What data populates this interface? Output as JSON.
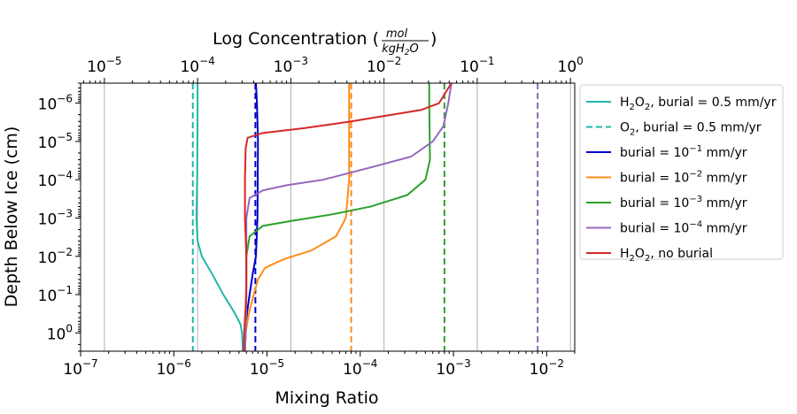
{
  "chart_data": {
    "type": "line",
    "title": "",
    "xlabel": "Mixing Ratio",
    "ylabel": "Depth Below Ice (cm)",
    "top_xlabel": {
      "main": "Log Concentration (",
      "num": "mol",
      "den": "kgH",
      "den_sub": "2",
      "den_tail": "O",
      "close": ")"
    },
    "xscale": "log",
    "yscale": "log",
    "xlim": [
      1e-07,
      0.02
    ],
    "ylim": [
      3.0,
      3e-07
    ],
    "y_inverted": true,
    "grid": "vertical",
    "legend_position": "right-outside",
    "x_ticks": [
      {
        "value": 1e-07,
        "base": "10",
        "exp": "−7"
      },
      {
        "value": 1e-06,
        "base": "10",
        "exp": "−6"
      },
      {
        "value": 1e-05,
        "base": "10",
        "exp": "−5"
      },
      {
        "value": 0.0001,
        "base": "10",
        "exp": "−4"
      },
      {
        "value": 0.001,
        "base": "10",
        "exp": "−3"
      },
      {
        "value": 0.01,
        "base": "10",
        "exp": "−2"
      }
    ],
    "top_x_ticks": [
      {
        "value": 1.8e-07,
        "base": "10",
        "exp": "−5"
      },
      {
        "value": 1.8e-06,
        "base": "10",
        "exp": "−4"
      },
      {
        "value": 1.8e-05,
        "base": "10",
        "exp": "−3"
      },
      {
        "value": 0.00018,
        "base": "10",
        "exp": "−2"
      },
      {
        "value": 0.0018,
        "base": "10",
        "exp": "−1"
      },
      {
        "value": 0.018,
        "base": "10",
        "exp": "0"
      }
    ],
    "y_ticks": [
      {
        "value": 1e-06,
        "base": "10",
        "exp": "−6"
      },
      {
        "value": 1e-05,
        "base": "10",
        "exp": "−5"
      },
      {
        "value": 0.0001,
        "base": "10",
        "exp": "−4"
      },
      {
        "value": 0.001,
        "base": "10",
        "exp": "−3"
      },
      {
        "value": 0.01,
        "base": "10",
        "exp": "−2"
      },
      {
        "value": 0.1,
        "base": "10",
        "exp": "−1"
      },
      {
        "value": 1,
        "base": "10",
        "exp": "0"
      }
    ],
    "series": [
      {
        "name": "H2O2, burial = 0.5 mm/yr",
        "legend": {
          "pre": "H",
          "sub1": "2",
          "mid": "O",
          "sub2": "2",
          "post": ", burial = 0.5 mm/yr"
        },
        "color": "#1fb6a8",
        "dash": "solid",
        "points": [
          [
            1.8e-06,
            3e-07
          ],
          [
            1.8e-06,
            1e-06
          ],
          [
            1.78e-06,
            0.0001
          ],
          [
            1.75e-06,
            0.001
          ],
          [
            1.8e-06,
            0.004
          ],
          [
            2e-06,
            0.01
          ],
          [
            2.6e-06,
            0.03
          ],
          [
            3.4e-06,
            0.1
          ],
          [
            4.5e-06,
            0.3
          ],
          [
            5.2e-06,
            0.6
          ],
          [
            5.4e-06,
            1.0
          ],
          [
            5.5e-06,
            3.0
          ]
        ]
      },
      {
        "name": "O2, burial = 0.5 mm/yr",
        "legend": {
          "pre": "O",
          "sub1": "2",
          "mid": "",
          "sub2": "",
          "post": ", burial = 0.5 mm/yr"
        },
        "color": "#1fb6a8",
        "dash": "dashed",
        "points": [
          [
            1.6e-06,
            3e-07
          ],
          [
            1.6e-06,
            3.0
          ]
        ]
      },
      {
        "name": "burial = 10^-1 mm/yr",
        "legend": {
          "pre": "burial = 10",
          "sup": "−1",
          "post": " mm/yr"
        },
        "color": "#0000c8",
        "dash": "solid",
        "points": [
          [
            7.6e-06,
            3e-07
          ],
          [
            7.8e-06,
            1e-06
          ],
          [
            8e-06,
            1e-05
          ],
          [
            7.9e-06,
            0.001
          ],
          [
            7.6e-06,
            0.01
          ],
          [
            7e-06,
            0.03
          ],
          [
            6.5e-06,
            0.1
          ],
          [
            6.1e-06,
            0.3
          ],
          [
            5.9e-06,
            1.0
          ],
          [
            5.8e-06,
            3.0
          ]
        ]
      },
      {
        "name": "burial = 10^-1 mm/yr (O2)",
        "legend_hidden": true,
        "color": "#0000c8",
        "dash": "dashed",
        "points": [
          [
            7.5e-06,
            3e-07
          ],
          [
            7.5e-06,
            3.0
          ]
        ]
      },
      {
        "name": "burial = 10^-2 mm/yr",
        "legend": {
          "pre": "burial = 10",
          "sup": "−2",
          "post": " mm/yr"
        },
        "color": "#ff8c1a",
        "dash": "solid",
        "points": [
          [
            7.6e-05,
            3e-07
          ],
          [
            7.6e-05,
            1e-06
          ],
          [
            7.6e-05,
            0.0001
          ],
          [
            7e-05,
            0.001
          ],
          [
            5.5e-05,
            0.003
          ],
          [
            3e-05,
            0.007
          ],
          [
            1.5e-05,
            0.012
          ],
          [
            9.5e-06,
            0.02
          ],
          [
            8e-06,
            0.04
          ],
          [
            7.2e-06,
            0.1
          ],
          [
            6.4e-06,
            0.3
          ],
          [
            5.9e-06,
            1.0
          ],
          [
            5.8e-06,
            3.0
          ]
        ]
      },
      {
        "name": "burial = 10^-2 mm/yr (O2)",
        "legend_hidden": true,
        "color": "#ff8c1a",
        "dash": "dashed",
        "points": [
          [
            8e-05,
            3e-07
          ],
          [
            8e-05,
            3.0
          ]
        ]
      },
      {
        "name": "burial = 10^-3 mm/yr",
        "legend": {
          "pre": "burial = 10",
          "sup": "−3",
          "post": " mm/yr"
        },
        "color": "#2ca02c",
        "dash": "solid",
        "points": [
          [
            0.00055,
            3e-07
          ],
          [
            0.00055,
            1e-06
          ],
          [
            0.00056,
            3e-05
          ],
          [
            0.0005,
            0.0001
          ],
          [
            0.00032,
            0.00025
          ],
          [
            0.00013,
            0.0005
          ],
          [
            5e-05,
            0.0008
          ],
          [
            1.8e-05,
            0.0012
          ],
          [
            9e-06,
            0.0016
          ],
          [
            6.5e-06,
            0.003
          ],
          [
            6e-06,
            0.01
          ],
          [
            6e-06,
            0.1
          ],
          [
            5.9e-06,
            1.0
          ],
          [
            5.8e-06,
            3.0
          ]
        ]
      },
      {
        "name": "burial = 10^-3 mm/yr (O2)",
        "legend_hidden": true,
        "color": "#2ca02c",
        "dash": "dashed",
        "points": [
          [
            0.0008,
            3e-07
          ],
          [
            0.0008,
            3.0
          ]
        ]
      },
      {
        "name": "burial = 10^-4 mm/yr",
        "legend": {
          "pre": "burial = 10",
          "sup": "−4",
          "post": " mm/yr"
        },
        "color": "#9467bd",
        "dash": "solid",
        "points": [
          [
            0.00095,
            3e-07
          ],
          [
            0.00088,
            1e-06
          ],
          [
            0.00078,
            4e-06
          ],
          [
            0.0006,
            1e-05
          ],
          [
            0.00035,
            2.5e-05
          ],
          [
            0.00012,
            5e-05
          ],
          [
            4e-05,
            0.0001
          ],
          [
            1.6e-05,
            0.00014
          ],
          [
            9e-06,
            0.00019
          ],
          [
            6.5e-06,
            0.0003
          ],
          [
            6e-06,
            0.001
          ],
          [
            6e-06,
            0.1
          ],
          [
            5.9e-06,
            1.0
          ],
          [
            5.8e-06,
            3.0
          ]
        ]
      },
      {
        "name": "burial = 10^-4 mm/yr (O2)",
        "legend_hidden": true,
        "color": "#9467bd",
        "dash": "dashed",
        "points": [
          [
            0.008,
            3e-07
          ],
          [
            0.008,
            3.0
          ]
        ]
      },
      {
        "name": "H2O2, no burial",
        "legend": {
          "pre": "H",
          "sub1": "2",
          "mid": "O",
          "sub2": "2",
          "post": ", no burial"
        },
        "color": "#d62728",
        "dash": "solid",
        "points": [
          [
            0.00095,
            3e-07
          ],
          [
            0.0007,
            1e-06
          ],
          [
            0.00045,
            1.5e-06
          ],
          [
            0.00022,
            2e-06
          ],
          [
            8e-05,
            3e-06
          ],
          [
            2.5e-05,
            4.5e-06
          ],
          [
            9e-06,
            6e-06
          ],
          [
            6.2e-06,
            8e-06
          ],
          [
            5.9e-06,
            1.5e-05
          ],
          [
            5.8e-06,
            0.0001
          ],
          [
            5.8e-06,
            0.001
          ],
          [
            6e-06,
            0.01
          ],
          [
            6e-06,
            0.05
          ],
          [
            5.9e-06,
            0.2
          ],
          [
            5.8e-06,
            0.4
          ],
          [
            5.7e-06,
            1.0
          ],
          [
            5.6e-06,
            3.0
          ]
        ]
      }
    ]
  }
}
